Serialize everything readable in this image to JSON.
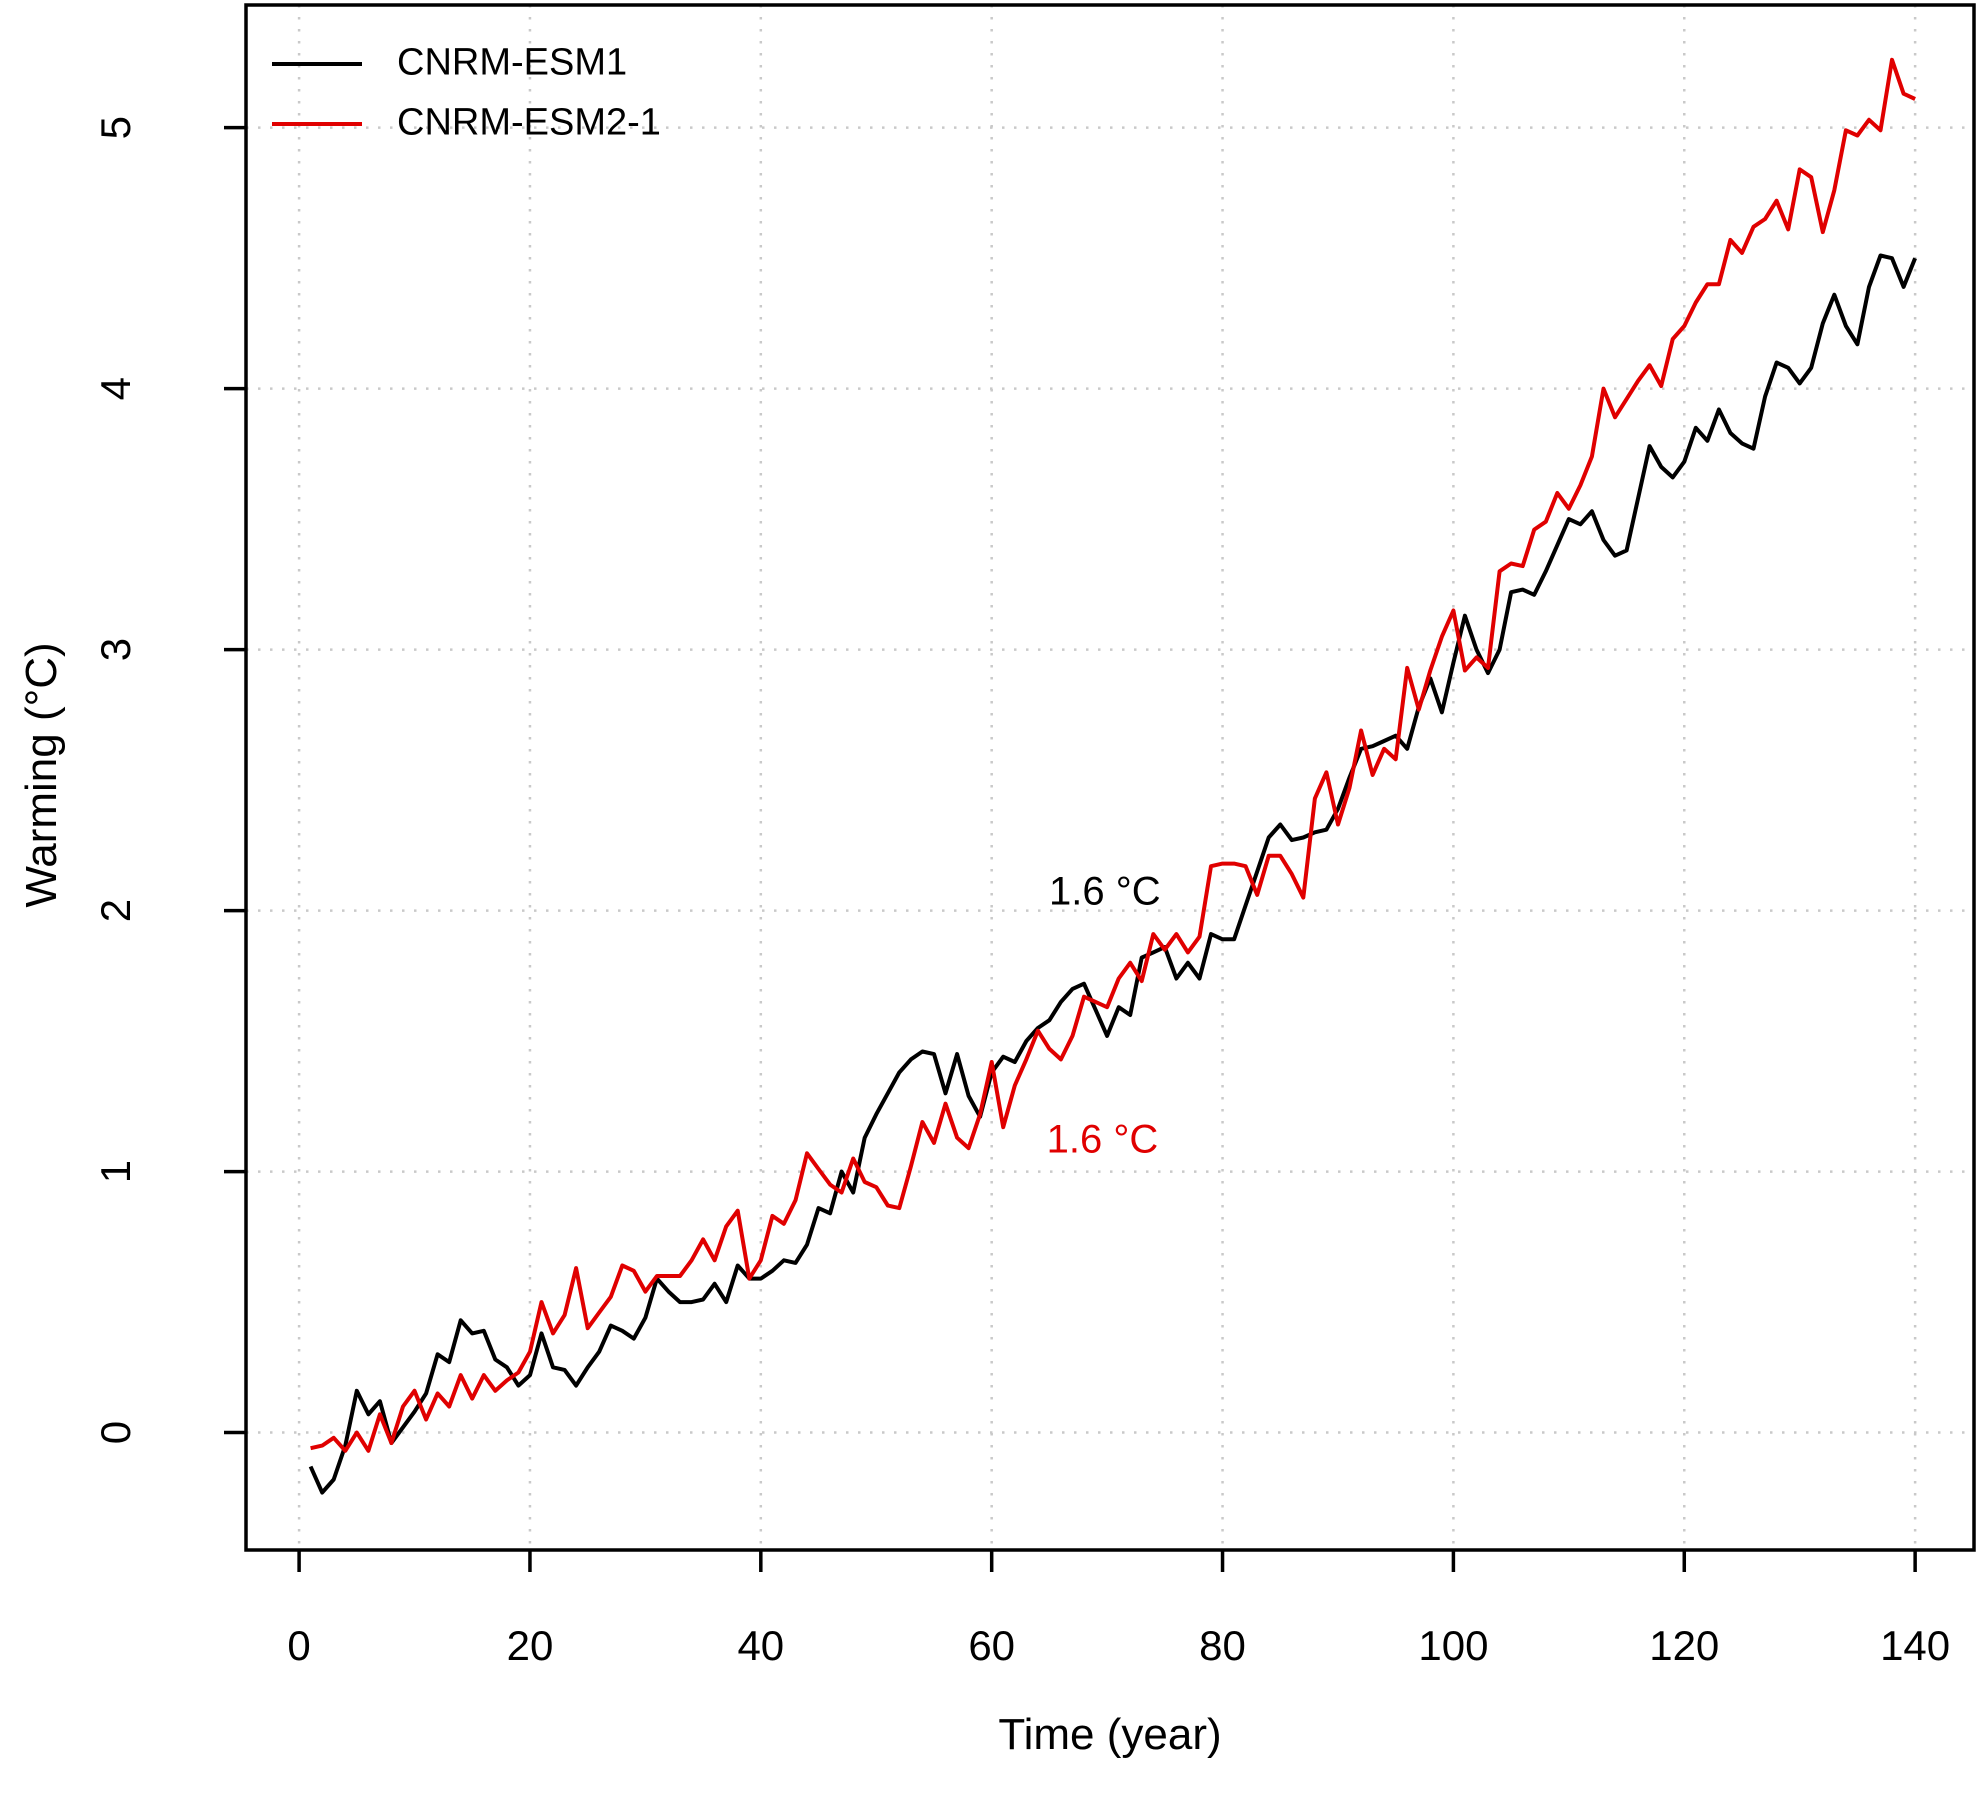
{
  "figure": {
    "background": "#ffffff",
    "grid_color": "#c9c9c9",
    "axis_color": "#000000"
  },
  "chart_data": {
    "type": "line",
    "title": "",
    "xlabel": "Time (year)",
    "ylabel": "Warming (°C)",
    "x_ticks": [
      0,
      20,
      40,
      60,
      80,
      100,
      120,
      140
    ],
    "y_ticks": [
      0,
      1,
      2,
      3,
      4,
      5
    ],
    "xlim": [
      -4.6,
      145.1
    ],
    "ylim": [
      -0.45,
      5.47
    ],
    "grid": "dotted",
    "legend_position": "top-left",
    "x_range": [
      1,
      140
    ],
    "x_step": 1,
    "series": [
      {
        "name": "CNRM-ESM1",
        "color": "#000000",
        "values": [
          -0.13,
          -0.23,
          -0.18,
          -0.05,
          0.16,
          0.07,
          0.12,
          -0.04,
          0.02,
          0.08,
          0.15,
          0.3,
          0.27,
          0.43,
          0.38,
          0.39,
          0.28,
          0.25,
          0.18,
          0.22,
          0.38,
          0.25,
          0.24,
          0.18,
          0.25,
          0.31,
          0.41,
          0.39,
          0.36,
          0.44,
          0.59,
          0.54,
          0.5,
          0.5,
          0.51,
          0.57,
          0.5,
          0.64,
          0.59,
          0.59,
          0.62,
          0.66,
          0.65,
          0.72,
          0.86,
          0.84,
          1.0,
          0.92,
          1.13,
          1.22,
          1.3,
          1.38,
          1.43,
          1.46,
          1.45,
          1.3,
          1.45,
          1.29,
          1.21,
          1.38,
          1.44,
          1.42,
          1.5,
          1.55,
          1.58,
          1.65,
          1.7,
          1.72,
          1.62,
          1.52,
          1.63,
          1.6,
          1.82,
          1.84,
          1.86,
          1.74,
          1.8,
          1.74,
          1.91,
          1.89,
          1.89,
          2.02,
          2.15,
          2.28,
          2.33,
          2.27,
          2.28,
          2.3,
          2.31,
          2.39,
          2.51,
          2.62,
          2.63,
          2.65,
          2.67,
          2.62,
          2.78,
          2.89,
          2.76,
          2.95,
          3.13,
          3.0,
          2.91,
          3.0,
          3.22,
          3.23,
          3.21,
          3.3,
          3.4,
          3.5,
          3.48,
          3.53,
          3.42,
          3.36,
          3.38,
          3.58,
          3.78,
          3.7,
          3.66,
          3.72,
          3.85,
          3.8,
          3.92,
          3.83,
          3.79,
          3.77,
          3.97,
          4.1,
          4.08,
          4.02,
          4.08,
          4.25,
          4.36,
          4.24,
          4.17,
          4.39,
          4.51,
          4.5,
          4.39,
          4.5
        ]
      },
      {
        "name": "CNRM-ESM2-1",
        "color": "#e00000",
        "values": [
          -0.06,
          -0.05,
          -0.02,
          -0.07,
          0.0,
          -0.07,
          0.07,
          -0.04,
          0.1,
          0.16,
          0.05,
          0.15,
          0.1,
          0.22,
          0.13,
          0.22,
          0.16,
          0.2,
          0.23,
          0.31,
          0.5,
          0.38,
          0.45,
          0.63,
          0.4,
          0.46,
          0.52,
          0.64,
          0.62,
          0.54,
          0.6,
          0.6,
          0.6,
          0.66,
          0.74,
          0.66,
          0.79,
          0.85,
          0.59,
          0.66,
          0.83,
          0.8,
          0.89,
          1.07,
          1.01,
          0.95,
          0.92,
          1.05,
          0.96,
          0.94,
          0.87,
          0.86,
          1.02,
          1.19,
          1.11,
          1.26,
          1.13,
          1.09,
          1.22,
          1.42,
          1.17,
          1.33,
          1.43,
          1.54,
          1.47,
          1.43,
          1.52,
          1.67,
          1.65,
          1.63,
          1.74,
          1.8,
          1.73,
          1.91,
          1.85,
          1.91,
          1.84,
          1.9,
          2.17,
          2.18,
          2.18,
          2.17,
          2.06,
          2.21,
          2.21,
          2.14,
          2.05,
          2.43,
          2.53,
          2.33,
          2.47,
          2.69,
          2.52,
          2.62,
          2.58,
          2.93,
          2.77,
          2.92,
          3.05,
          3.15,
          2.92,
          2.97,
          2.93,
          3.3,
          3.33,
          3.32,
          3.46,
          3.49,
          3.6,
          3.54,
          3.63,
          3.74,
          4.0,
          3.89,
          3.96,
          4.03,
          4.09,
          4.01,
          4.19,
          4.24,
          4.33,
          4.4,
          4.4,
          4.57,
          4.52,
          4.62,
          4.65,
          4.72,
          4.61,
          4.84,
          4.81,
          4.6,
          4.76,
          4.99,
          4.97,
          5.03,
          4.99,
          5.26,
          5.13,
          5.11
        ]
      }
    ],
    "annotations": [
      {
        "text": "1.6 °C",
        "color": "#000000",
        "x": 69.8,
        "y": 2.07
      },
      {
        "text": "1.6 °C",
        "color": "#e00000",
        "x": 69.6,
        "y": 1.12
      }
    ]
  }
}
